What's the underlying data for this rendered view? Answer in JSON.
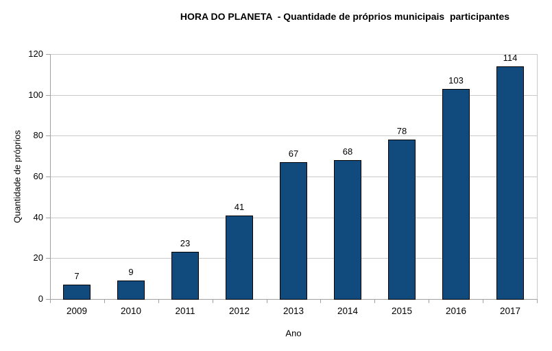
{
  "title": "HORA DO PLANETA  - Quantidade de próprios municipais  participantes",
  "colors": {
    "bar_fill": "#114a7d",
    "bar_border": "#000000",
    "axis_line": "#a0a0a0",
    "grid_line": "#c8c8c8",
    "text": "#000000",
    "background": "#ffffff"
  },
  "chart_data": {
    "type": "bar",
    "title": "HORA DO PLANETA  - Quantidade de próprios municipais  participantes",
    "categories": [
      "2009",
      "2010",
      "2011",
      "2012",
      "2013",
      "2014",
      "2015",
      "2016",
      "2017"
    ],
    "values": [
      7,
      9,
      23,
      41,
      67,
      68,
      78,
      103,
      114
    ],
    "xlabel": "Ano",
    "ylabel": "Quantidade de próprios",
    "ylim": [
      0,
      120
    ],
    "yticks": [
      0,
      20,
      40,
      60,
      80,
      100,
      120
    ],
    "grid": true,
    "legend_visible": false,
    "data_labels": true
  }
}
